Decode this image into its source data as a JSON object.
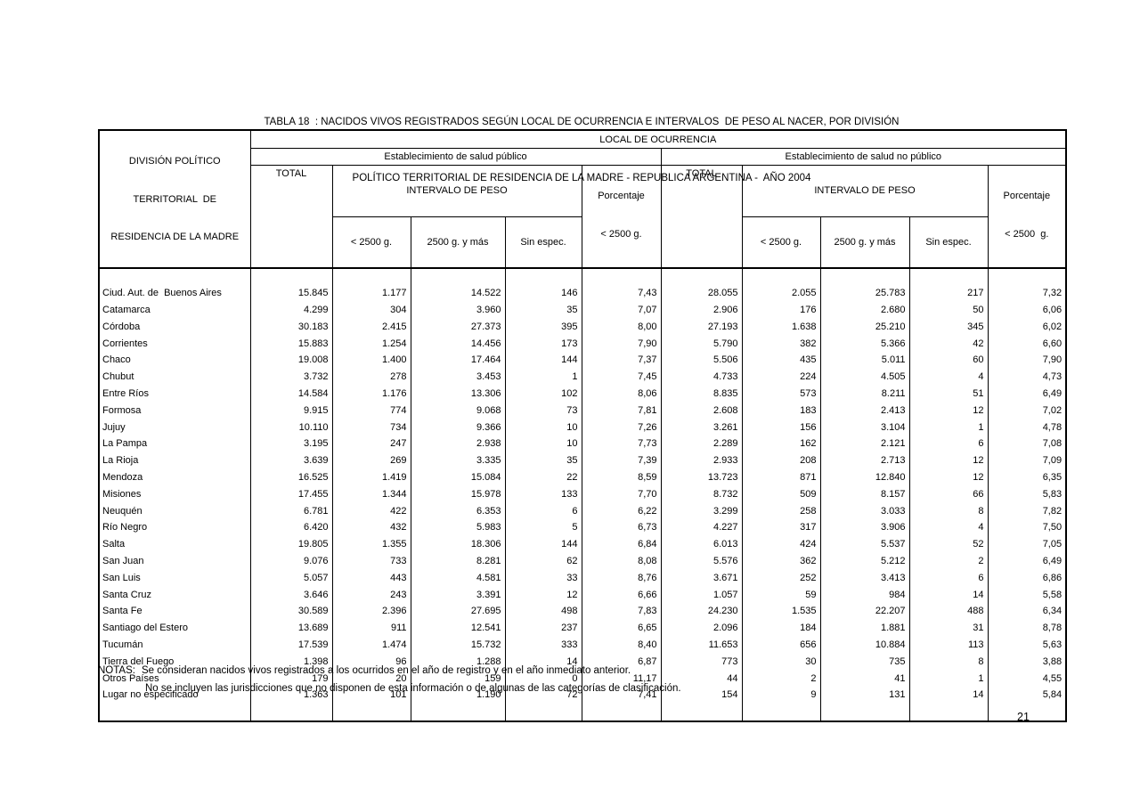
{
  "page": {
    "title_line1": "TABLA 18  : NACIDOS VIVOS REGISTRADOS SEGÚN LOCAL DE OCURRENCIA E INTERVALOS  DE PESO AL NACER, POR DIVISIÓN",
    "title_line2": "POLÍTICO TERRITORIAL DE RESIDENCIA DE LA MADRE - REPUBLICA ARGENTINA -  AÑO 2004",
    "notes_label": "NOTAS:",
    "note1": "Se consideran nacidos vivos registrados a los ocurridos en el año de registro y en el año inmediato anterior.",
    "note2": "No se incluyen las jurisdicciones que no disponen de esta información o de algunas de las categorías de clasificación.",
    "page_number": "21"
  },
  "table": {
    "row_header": [
      "DIVISIÓN POLÍTICO",
      "TERRITORIAL  DE",
      "RESIDENCIA DE LA MADRE"
    ],
    "top_header": "LOCAL DE OCURRENCIA",
    "groups": [
      "Establecimiento de salud público",
      "Establecimiento de salud no público"
    ],
    "headers": {
      "total": "TOTAL",
      "intervalo": "INTERVALO DE PESO",
      "pct_line1": "Porcentaje",
      "pct_line2": "< 2500 g.",
      "pct_line2b": "< 2500  g.",
      "sub": [
        "< 2500 g.",
        "2500 g. y más",
        "Sin espec."
      ]
    },
    "rows": [
      [
        "Ciud. Aut. de  Buenos Aires",
        "15.845",
        "1.177",
        "14.522",
        "146",
        "7,43",
        "28.055",
        "2.055",
        "25.783",
        "217",
        "7,32"
      ],
      [
        "Catamarca",
        "4.299",
        "304",
        "3.960",
        "35",
        "7,07",
        "2.906",
        "176",
        "2.680",
        "50",
        "6,06"
      ],
      [
        "Córdoba",
        "30.183",
        "2.415",
        "27.373",
        "395",
        "8,00",
        "27.193",
        "1.638",
        "25.210",
        "345",
        "6,02"
      ],
      [
        "Corrientes",
        "15.883",
        "1.254",
        "14.456",
        "173",
        "7,90",
        "5.790",
        "382",
        "5.366",
        "42",
        "6,60"
      ],
      [
        "Chaco",
        "19.008",
        "1.400",
        "17.464",
        "144",
        "7,37",
        "5.506",
        "435",
        "5.011",
        "60",
        "7,90"
      ],
      [
        "Chubut",
        "3.732",
        "278",
        "3.453",
        "1",
        "7,45",
        "4.733",
        "224",
        "4.505",
        "4",
        "4,73"
      ],
      [
        "Entre Ríos",
        "14.584",
        "1.176",
        "13.306",
        "102",
        "8,06",
        "8.835",
        "573",
        "8.211",
        "51",
        "6,49"
      ],
      [
        "Formosa",
        "9.915",
        "774",
        "9.068",
        "73",
        "7,81",
        "2.608",
        "183",
        "2.413",
        "12",
        "7,02"
      ],
      [
        "Jujuy",
        "10.110",
        "734",
        "9.366",
        "10",
        "7,26",
        "3.261",
        "156",
        "3.104",
        "1",
        "4,78"
      ],
      [
        "La Pampa",
        "3.195",
        "247",
        "2.938",
        "10",
        "7,73",
        "2.289",
        "162",
        "2.121",
        "6",
        "7,08"
      ],
      [
        "La Rioja",
        "3.639",
        "269",
        "3.335",
        "35",
        "7,39",
        "2.933",
        "208",
        "2.713",
        "12",
        "7,09"
      ],
      [
        "Mendoza",
        "16.525",
        "1.419",
        "15.084",
        "22",
        "8,59",
        "13.723",
        "871",
        "12.840",
        "12",
        "6,35"
      ],
      [
        "Misiones",
        "17.455",
        "1.344",
        "15.978",
        "133",
        "7,70",
        "8.732",
        "509",
        "8.157",
        "66",
        "5,83"
      ],
      [
        "Neuquén",
        "6.781",
        "422",
        "6.353",
        "6",
        "6,22",
        "3.299",
        "258",
        "3.033",
        "8",
        "7,82"
      ],
      [
        "Río Negro",
        "6.420",
        "432",
        "5.983",
        "5",
        "6,73",
        "4.227",
        "317",
        "3.906",
        "4",
        "7,50"
      ],
      [
        "Salta",
        "19.805",
        "1.355",
        "18.306",
        "144",
        "6,84",
        "6.013",
        "424",
        "5.537",
        "52",
        "7,05"
      ],
      [
        "San Juan",
        "9.076",
        "733",
        "8.281",
        "62",
        "8,08",
        "5.576",
        "362",
        "5.212",
        "2",
        "6,49"
      ],
      [
        "San Luis",
        "5.057",
        "443",
        "4.581",
        "33",
        "8,76",
        "3.671",
        "252",
        "3.413",
        "6",
        "6,86"
      ],
      [
        "Santa Cruz",
        "3.646",
        "243",
        "3.391",
        "12",
        "6,66",
        "1.057",
        "59",
        "984",
        "14",
        "5,58"
      ],
      [
        "Santa Fe",
        "30.589",
        "2.396",
        "27.695",
        "498",
        "7,83",
        "24.230",
        "1.535",
        "22.207",
        "488",
        "6,34"
      ],
      [
        "Santiago del Estero",
        "13.689",
        "911",
        "12.541",
        "237",
        "6,65",
        "2.096",
        "184",
        "1.881",
        "31",
        "8,78"
      ],
      [
        "Tucumán",
        "17.539",
        "1.474",
        "15.732",
        "333",
        "8,40",
        "11.653",
        "656",
        "10.884",
        "113",
        "5,63"
      ],
      [
        "Tierra del Fuego",
        "1.398",
        "96",
        "1.288",
        "14",
        "6,87",
        "773",
        "30",
        "735",
        "8",
        "3,88"
      ],
      [
        "Otros Países",
        "179",
        "20",
        "159",
        "0",
        "11,17",
        "44",
        "2",
        "41",
        "1",
        "4,55"
      ],
      [
        "Lugar no especificado",
        "1.363",
        "101",
        "1.190",
        "72",
        "7,41",
        "154",
        "9",
        "131",
        "14",
        "5,84"
      ]
    ]
  }
}
